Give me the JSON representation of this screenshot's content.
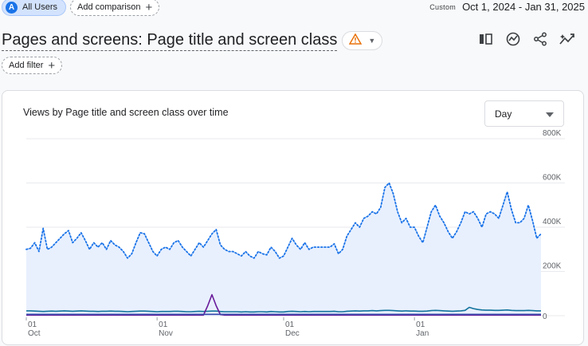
{
  "topbar": {
    "segment_avatar": "A",
    "segment_label": "All Users",
    "add_comparison_label": "Add comparison",
    "custom_label": "Custom",
    "date_range": "Oct 1, 2024 - Jan 31, 2025"
  },
  "report": {
    "title": "Pages and screens: Page title and screen class",
    "add_filter_label": "Add filter",
    "icons": [
      "compare-columns-icon",
      "insights-icon",
      "share-icon",
      "trending-icon"
    ]
  },
  "chart_card": {
    "title": "Views by Page title and screen class over time",
    "granularity": "Day"
  },
  "chart_data": {
    "type": "line",
    "title": "Views by Page title and screen class over time",
    "y_ticks": [
      "800K",
      "600K",
      "400K",
      "200K",
      "0"
    ],
    "ylim": [
      0,
      800000
    ],
    "x_ticks": [
      {
        "day": "01",
        "month": "Oct",
        "index": 0
      },
      {
        "day": "01",
        "month": "Nov",
        "index": 31
      },
      {
        "day": "01",
        "month": "Dec",
        "index": 61
      },
      {
        "day": "01",
        "month": "Jan",
        "index": 92
      }
    ],
    "x_count": 123,
    "grid": true,
    "colors": {
      "total": "#1a73e8",
      "total_fill": "#e8f0fe",
      "series1": "#12739c",
      "series2": "#6a1b9a",
      "series3": "#3949ab"
    },
    "series": [
      {
        "key": "total",
        "style": "dotted-area",
        "values": [
          300000,
          305000,
          330000,
          290000,
          395000,
          300000,
          310000,
          330000,
          350000,
          370000,
          385000,
          330000,
          350000,
          375000,
          340000,
          300000,
          330000,
          310000,
          330000,
          300000,
          340000,
          320000,
          310000,
          290000,
          260000,
          280000,
          330000,
          375000,
          370000,
          330000,
          290000,
          270000,
          300000,
          310000,
          300000,
          330000,
          340000,
          310000,
          290000,
          270000,
          300000,
          330000,
          310000,
          340000,
          370000,
          390000,
          320000,
          300000,
          290000,
          290000,
          280000,
          270000,
          290000,
          270000,
          260000,
          290000,
          280000,
          275000,
          310000,
          290000,
          260000,
          270000,
          310000,
          350000,
          320000,
          300000,
          330000,
          300000,
          310000,
          310000,
          310000,
          310000,
          310000,
          325000,
          280000,
          300000,
          360000,
          390000,
          420000,
          400000,
          440000,
          450000,
          470000,
          460000,
          490000,
          580000,
          600000,
          550000,
          470000,
          420000,
          440000,
          400000,
          400000,
          360000,
          330000,
          400000,
          470000,
          500000,
          450000,
          420000,
          380000,
          350000,
          380000,
          420000,
          470000,
          460000,
          470000,
          440000,
          400000,
          460000,
          470000,
          460000,
          440000,
          500000,
          560000,
          480000,
          420000,
          420000,
          440000,
          500000,
          430000,
          350000,
          370000
        ]
      },
      {
        "key": "series1",
        "style": "line",
        "values": [
          22000,
          22000,
          21000,
          20000,
          19000,
          20000,
          21000,
          20000,
          21000,
          22000,
          21000,
          20000,
          21000,
          22000,
          21000,
          20000,
          20000,
          19000,
          20000,
          20000,
          21000,
          20000,
          20000,
          19000,
          18000,
          19000,
          20000,
          21000,
          21000,
          20000,
          19000,
          18000,
          19000,
          19000,
          19000,
          20000,
          20000,
          19000,
          18000,
          18000,
          19000,
          20000,
          19000,
          20000,
          21000,
          21000,
          19000,
          18000,
          18000,
          18000,
          18000,
          17000,
          18000,
          17000,
          17000,
          18000,
          18000,
          17000,
          19000,
          18000,
          17000,
          17000,
          19000,
          20000,
          19000,
          18000,
          19000,
          18000,
          19000,
          19000,
          19000,
          19000,
          19000,
          20000,
          18000,
          18000,
          20000,
          21000,
          22000,
          21000,
          22000,
          22000,
          23000,
          22000,
          23000,
          24000,
          24000,
          23000,
          22000,
          21000,
          22000,
          21000,
          21000,
          20000,
          20000,
          21000,
          23000,
          24000,
          23000,
          22000,
          21000,
          20000,
          21000,
          22000,
          24000,
          38000,
          32000,
          28000,
          26000,
          25000,
          25000,
          24000,
          24000,
          25000,
          26000,
          24000,
          23000,
          23000,
          23000,
          24000,
          23000,
          22000,
          22000
        ]
      },
      {
        "key": "series2",
        "style": "line",
        "values": [
          3000,
          3000,
          3000,
          3000,
          3000,
          3000,
          3000,
          3000,
          3000,
          3000,
          3000,
          3000,
          3000,
          3000,
          3000,
          3000,
          3000,
          3000,
          3000,
          3000,
          3000,
          3000,
          3000,
          3000,
          3000,
          3000,
          3000,
          3000,
          3000,
          3000,
          3000,
          3000,
          3000,
          3000,
          3000,
          3000,
          3000,
          3000,
          3000,
          3000,
          3000,
          3000,
          3000,
          45000,
          95000,
          45000,
          5000,
          3000,
          3000,
          3000,
          3000,
          3000,
          3000,
          3000,
          3000,
          3000,
          3000,
          3000,
          3000,
          3000,
          3000,
          3000,
          3000,
          3000,
          3000,
          3000,
          3000,
          3000,
          3000,
          3000,
          3000,
          3000,
          3000,
          3000,
          3000,
          3000,
          3000,
          3000,
          3000,
          3000,
          3000,
          3000,
          3000,
          3000,
          3000,
          3000,
          3000,
          3000,
          3000,
          3000,
          3000,
          3000,
          3000,
          3000,
          3000,
          3000,
          3000,
          3000,
          3000,
          3000,
          3000,
          3000,
          3000,
          3000,
          3000,
          3000,
          3000,
          3000,
          3000,
          3000,
          3000,
          3000,
          3000,
          3000,
          3000,
          3000,
          3000,
          3000,
          3000,
          3000,
          3000,
          3000,
          3000
        ]
      },
      {
        "key": "series3",
        "style": "line",
        "values": [
          6000,
          6000,
          6000,
          6000,
          6000,
          6000,
          6000,
          6000,
          6000,
          6000,
          6000,
          6000,
          6000,
          6000,
          6000,
          6000,
          6000,
          6000,
          6000,
          6000,
          6000,
          6000,
          6000,
          6000,
          6000,
          6000,
          6000,
          6000,
          6000,
          6000,
          6000,
          6000,
          6000,
          6000,
          6000,
          6000,
          6000,
          6000,
          6000,
          6000,
          6000,
          6000,
          6000,
          6000,
          6000,
          6000,
          6000,
          6000,
          6000,
          6000,
          6000,
          6000,
          6000,
          6000,
          6000,
          6000,
          6000,
          6000,
          6000,
          6000,
          6000,
          6000,
          6000,
          6000,
          6000,
          6000,
          6000,
          6000,
          6000,
          6000,
          6000,
          6000,
          6000,
          6000,
          6000,
          6000,
          6000,
          6000,
          6000,
          6000,
          6000,
          6000,
          6000,
          6000,
          6000,
          6000,
          6000,
          6000,
          6000,
          6000,
          6000,
          6000,
          6000,
          6000,
          6000,
          6000,
          6000,
          6000,
          6000,
          6000,
          6000,
          6000,
          6000,
          6000,
          6000,
          6000,
          6000,
          6000,
          6000,
          6000,
          6000,
          6000,
          6000,
          6000,
          6000,
          6000,
          6000,
          6000,
          6000,
          6000,
          6000,
          6000,
          6000
        ]
      }
    ]
  }
}
